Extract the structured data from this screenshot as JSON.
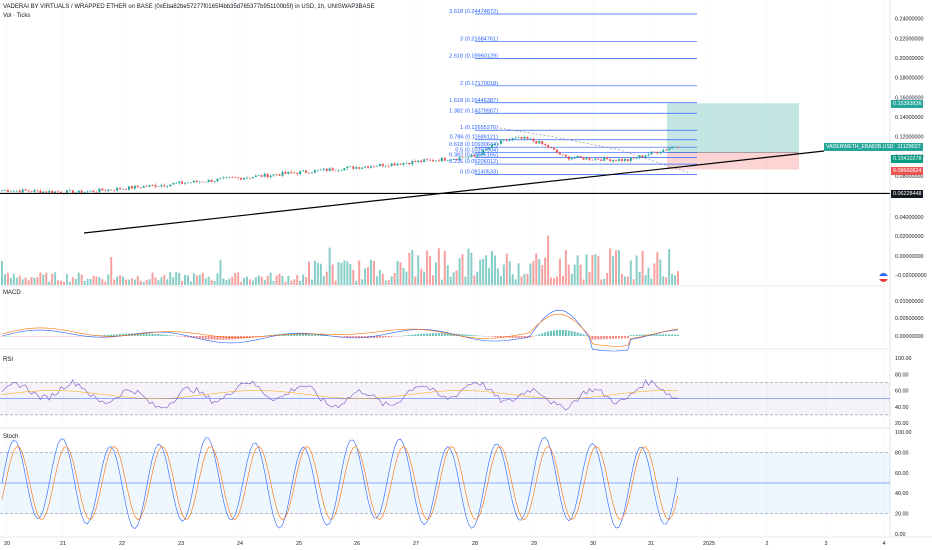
{
  "header": {
    "title": "VADERAI BY VIRTUALS / WRAPPED ETHER on BASE (0xEba82be57277f0165f4bb35d765377b951100b5f) in USD, 1h, UNISWAP3BASE",
    "vol_label": "Vol · Ticks"
  },
  "panes": {
    "macd_label": "MACD",
    "rsi_label": "RSI",
    "stoch_label": "Stoch"
  },
  "colors": {
    "up": "#26a69a",
    "down": "#ef5350",
    "fib": "#2962ff",
    "macd": "#2962ff",
    "signal": "#ff6d00",
    "rsi": "#7e57c2",
    "stoch_k": "#2962ff",
    "stoch_d": "#ff6d00"
  },
  "chart_data": {
    "type": "candlestick",
    "x_labels": [
      "20",
      "21",
      "22",
      "23",
      "24",
      "25",
      "26",
      "27",
      "28",
      "29",
      "30",
      "31",
      "2025",
      "2",
      "3",
      "4"
    ],
    "price_axis_ticks": [
      "0.24000000",
      "0.22000000",
      "0.20000000",
      "0.18000000",
      "0.16000000",
      "0.14000000",
      "0.12000000",
      "0.10000000",
      "0.08000000"
    ],
    "fib_levels": [
      {
        "label": "3.618 (0.24474872)",
        "value": 0.24474872
      },
      {
        "label": "3 (0.21684761)",
        "value": 0.21684761
      },
      {
        "label": "2.618 (0.19960129)",
        "value": 0.19960129
      },
      {
        "label": "2 (0.17170018)",
        "value": 0.17170018
      },
      {
        "label": "1.618 (0.15446387)",
        "value": 0.15446387
      },
      {
        "label": "1.382 (0.14379907)",
        "value": 0.14379907
      },
      {
        "label": "1 (0.12655276)",
        "value": 0.12655276
      },
      {
        "label": "0.786 (0.11689121)",
        "value": 0.11689121
      },
      {
        "label": "0.618 (0.10930644)",
        "value": 0.10930644
      },
      {
        "label": "0.5 (0.10397904)",
        "value": 0.10397904
      },
      {
        "label": "0.382 (0.09865165)",
        "value": 0.09865165
      },
      {
        "label": "0.236 (0.09206012)",
        "value": 0.09206012
      },
      {
        "label": "0 (0.08140533)",
        "value": 0.08140533
      }
    ],
    "price_tags": [
      {
        "value": "0.15393836",
        "color": "#26a69a"
      },
      {
        "value": "0.11129027",
        "color": "#26a69a"
      },
      {
        "value": "0.10410278",
        "color": "#089981"
      },
      {
        "value": "0.08660824",
        "color": "#ef5350"
      },
      {
        "value": "0.06228448",
        "color": "#131722"
      }
    ],
    "pair_tag": "VADERWETH_EBA82B.USD",
    "volume_axis_ticks": [
      "0.04000000",
      "0.02000000",
      "0.00000000",
      "−0.02000000"
    ],
    "macd_axis_ticks": [
      "0.01000000",
      "0.00500000",
      "0.00000000"
    ],
    "rsi_axis_ticks": [
      "100.00",
      "80.00",
      "60.00",
      "40.00",
      "20.00"
    ],
    "stoch_axis_ticks": [
      "100.00",
      "80.00",
      "60.00",
      "40.00",
      "20.00",
      "0.00"
    ],
    "position": {
      "entry": 0.10410278,
      "target": 0.15393836,
      "stop": 0.08660824
    },
    "series_shape": {
      "price_start": 0.066,
      "price_end": 0.111,
      "price_peak": 0.125,
      "rsi_range": [
        35,
        75
      ],
      "stoch_range": [
        5,
        95
      ]
    }
  }
}
